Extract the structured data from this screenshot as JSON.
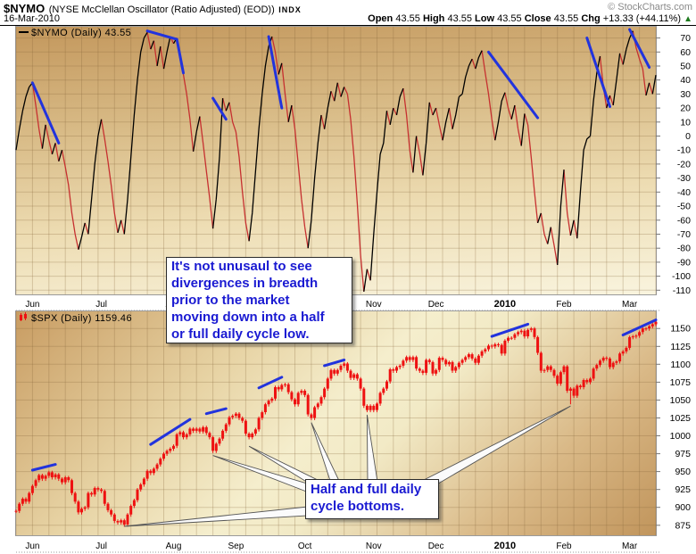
{
  "header": {
    "symbol": "$NYMO",
    "name": "(NYSE McClellan Oscillator (Ratio Adjusted) (EOD))",
    "exchange": "INDX",
    "date": "16-Mar-2010",
    "copyright": "© StockCharts.com",
    "quote": {
      "open_label": "Open",
      "open": "43.55",
      "high_label": "High",
      "high": "43.55",
      "low_label": "Low",
      "low": "43.55",
      "close_label": "Close",
      "close": "43.55",
      "chg_label": "Chg",
      "chg": "+13.33 (+44.11%)",
      "direction_icon": "▲"
    }
  },
  "colors": {
    "up_line": "#000000",
    "down_line": "#c63030",
    "candle": "#ee1111",
    "trendline": "#2233dd",
    "note_text": "#1a1ad2",
    "grid": "rgba(134,102,56,0.28)",
    "axis_text": "#000000",
    "tick": "#777777",
    "arrow_fill": "#fbfbfb",
    "arrow_edge": "#555555",
    "chg_up": "#1d7a1d"
  },
  "annotations": {
    "note1": {
      "lines": [
        "It's not unusaul to see",
        "divergences in breadth",
        "prior to the market",
        "moving down into a half",
        "or full daily cycle low."
      ]
    },
    "note2": {
      "lines": [
        "Half and full daily",
        "cycle bottoms."
      ]
    }
  },
  "chart_data": [
    {
      "type": "line",
      "legend": "$NYMO (Daily) 43.55",
      "ylim": [
        -113,
        78
      ],
      "yticks": [
        70,
        60,
        50,
        40,
        30,
        20,
        10,
        0,
        -10,
        -20,
        -30,
        -40,
        -50,
        -60,
        -70,
        -80,
        -90,
        -100,
        -110
      ],
      "grid": true,
      "x_months": [
        {
          "label": "Jun",
          "day": 5
        },
        {
          "label": "Jul",
          "day": 26
        },
        {
          "label": "Aug",
          "day": 48
        },
        {
          "label": "Sep",
          "day": 67
        },
        {
          "label": "Oct",
          "day": 88
        },
        {
          "label": "Nov",
          "day": 109
        },
        {
          "label": "Dec",
          "day": 128
        },
        {
          "label": "2010",
          "day": 149
        },
        {
          "label": "Feb",
          "day": 167
        },
        {
          "label": "Mar",
          "day": 187
        }
      ],
      "values": [
        -10,
        5,
        18,
        28,
        35,
        38,
        22,
        5,
        -9,
        8,
        -3,
        -13,
        -5,
        -18,
        -10,
        -22,
        -35,
        -55,
        -70,
        -81,
        -72,
        -62,
        -70,
        -45,
        -20,
        0,
        12,
        -2,
        -18,
        -35,
        -55,
        -69,
        -60,
        -70,
        -45,
        -15,
        15,
        40,
        60,
        70,
        74,
        62,
        68,
        50,
        64,
        48,
        60,
        71,
        66,
        70,
        55,
        44,
        30,
        12,
        -11,
        3,
        14,
        -5,
        -25,
        -44,
        -66,
        -45,
        -15,
        27,
        18,
        24,
        10,
        3,
        -15,
        -40,
        -62,
        -75,
        -55,
        -25,
        5,
        30,
        50,
        64,
        71,
        60,
        44,
        52,
        30,
        10,
        22,
        5,
        -20,
        -45,
        -65,
        -80,
        -60,
        -30,
        -5,
        15,
        5,
        20,
        32,
        25,
        38,
        28,
        35,
        30,
        12,
        -15,
        -48,
        -85,
        -111,
        -95,
        -103,
        -70,
        -40,
        -13,
        -5,
        18,
        8,
        20,
        15,
        28,
        34,
        15,
        -10,
        -26,
        0,
        -12,
        -28,
        -5,
        24,
        15,
        20,
        8,
        -3,
        10,
        20,
        5,
        15,
        28,
        30,
        42,
        50,
        55,
        48,
        56,
        61,
        45,
        30,
        12,
        -3,
        10,
        25,
        31,
        20,
        12,
        22,
        5,
        -7,
        16,
        8,
        -15,
        -40,
        -62,
        -55,
        -70,
        -77,
        -65,
        -78,
        -92,
        -50,
        -24,
        -55,
        -71,
        -60,
        -73,
        -40,
        -10,
        -2,
        0,
        25,
        45,
        57,
        35,
        20,
        29,
        22,
        40,
        59,
        51,
        62,
        70,
        75,
        63,
        55,
        48,
        29,
        38,
        30,
        43.55
      ],
      "trendlines": [
        [
          [
            5,
            38
          ],
          [
            13,
            -5
          ]
        ],
        [
          [
            40,
            75
          ],
          [
            49,
            69
          ],
          [
            51,
            45
          ]
        ],
        [
          [
            60,
            27
          ],
          [
            64,
            12
          ]
        ],
        [
          [
            77,
            71
          ],
          [
            81,
            20
          ]
        ],
        [
          [
            144,
            60
          ],
          [
            159,
            13
          ]
        ],
        [
          [
            174,
            70
          ],
          [
            181,
            21
          ]
        ],
        [
          [
            187,
            76
          ],
          [
            193,
            49
          ]
        ]
      ]
    },
    {
      "type": "candlestick",
      "legend": "$SPX (Daily) 1159.46",
      "ylim": [
        861,
        1174
      ],
      "yticks": [
        1150,
        1125,
        1100,
        1075,
        1050,
        1025,
        1000,
        975,
        950,
        925,
        900,
        875
      ],
      "grid": true,
      "x_months": [
        {
          "label": "Jun",
          "day": 5
        },
        {
          "label": "Jul",
          "day": 26
        },
        {
          "label": "Aug",
          "day": 48
        },
        {
          "label": "Sep",
          "day": 67
        },
        {
          "label": "Oct",
          "day": 88
        },
        {
          "label": "Nov",
          "day": 109
        },
        {
          "label": "Dec",
          "day": 128
        },
        {
          "label": "2010",
          "day": 149
        },
        {
          "label": "Feb",
          "day": 167
        },
        {
          "label": "Mar",
          "day": 187
        }
      ],
      "closes": [
        895,
        905,
        912,
        908,
        920,
        930,
        938,
        945,
        940,
        944,
        949,
        942,
        946,
        940,
        935,
        942,
        938,
        920,
        908,
        893,
        898,
        900,
        920,
        918,
        927,
        925,
        923,
        905,
        896,
        890,
        881,
        879,
        882,
        876,
        890,
        902,
        910,
        925,
        932,
        940,
        951,
        948,
        954,
        960,
        968,
        975,
        979,
        982,
        986,
        1002,
        1005,
        998,
        1002,
        1010,
        1007,
        1010,
        1006,
        1012,
        1004,
        998,
        979,
        989,
        996,
        1007,
        1016,
        1026,
        1028,
        1031,
        1025,
        1021,
        1003,
        998,
        1003,
        1009,
        1025,
        1033,
        1044,
        1049,
        1052,
        1068,
        1065,
        1071,
        1072,
        1061,
        1051,
        1044,
        1060,
        1063,
        1057,
        1030,
        1025,
        1040,
        1045,
        1054,
        1066,
        1080,
        1092,
        1087,
        1092,
        1098,
        1101,
        1091,
        1081,
        1086,
        1080,
        1066,
        1042,
        1036,
        1042,
        1036,
        1045,
        1060,
        1066,
        1076,
        1093,
        1091,
        1096,
        1098,
        1105,
        1110,
        1106,
        1110,
        1094,
        1091,
        1088,
        1106,
        1103,
        1087,
        1092,
        1109,
        1106,
        1100,
        1103,
        1091,
        1096,
        1102,
        1106,
        1110,
        1114,
        1108,
        1102,
        1112,
        1118,
        1121,
        1126,
        1125,
        1128,
        1127,
        1115,
        1133,
        1137,
        1137,
        1142,
        1145,
        1147,
        1139,
        1148,
        1150,
        1138,
        1116,
        1091,
        1092,
        1097,
        1092,
        1084,
        1073,
        1089,
        1097,
        1063,
        1066,
        1056,
        1070,
        1068,
        1078,
        1075,
        1080,
        1094,
        1099,
        1105,
        1109,
        1108,
        1096,
        1102,
        1104,
        1115,
        1118,
        1123,
        1138,
        1139,
        1140,
        1145,
        1150,
        1150,
        1153,
        1156,
        1159.46
      ],
      "wick": 3,
      "spike_lows": {
        "169": 1044
      },
      "trendlines": [
        [
          [
            5,
            952
          ],
          [
            12,
            960
          ]
        ],
        [
          [
            41,
            988
          ],
          [
            53,
            1023
          ]
        ],
        [
          [
            58,
            1031
          ],
          [
            64,
            1038
          ]
        ],
        [
          [
            74,
            1067
          ],
          [
            81,
            1082
          ]
        ],
        [
          [
            94,
            1098
          ],
          [
            100,
            1106
          ]
        ],
        [
          [
            145,
            1139
          ],
          [
            156,
            1156
          ]
        ],
        [
          [
            185,
            1141
          ],
          [
            195,
            1162
          ]
        ]
      ],
      "cycle_bottom_markers": [
        [
          33,
          876
        ],
        [
          60,
          975
        ],
        [
          71,
          988
        ],
        [
          90,
          1021
        ],
        [
          107,
          1032
        ],
        [
          169,
          1044
        ]
      ]
    }
  ]
}
